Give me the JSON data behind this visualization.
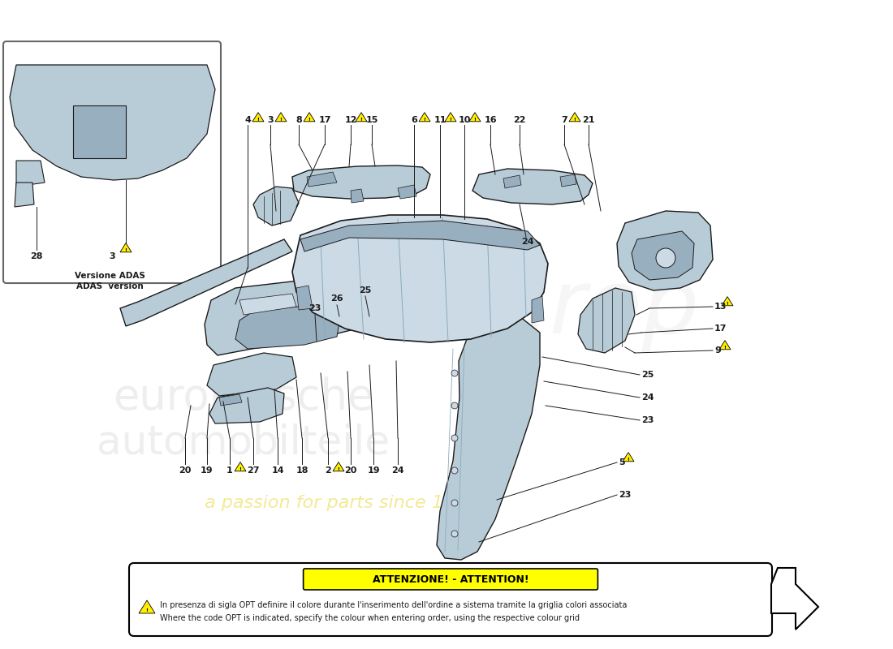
{
  "bg_color": "#ffffff",
  "warning_title": "ATTENZIONE! - ATTENTION!",
  "warning_text_it": "In presenza di sigla OPT definire il colore durante l'inserimento dell'ordine a sistema tramite la griglia colori associata",
  "warning_text_en": "Where the code OPT is indicated, specify the colour when entering order, using the respective colour grid",
  "adas_label_1": "Versione ADAS",
  "adas_label_2": "ADAS  version",
  "part_color": "#b8ccd8",
  "part_color_dark": "#98afc0",
  "part_color_light": "#ccdae6",
  "line_color": "#1a1a1a",
  "warn_yellow": "#ffee00",
  "warn_black": "#000000",
  "attention_bg": "#ffff00",
  "attention_border": "#000000"
}
